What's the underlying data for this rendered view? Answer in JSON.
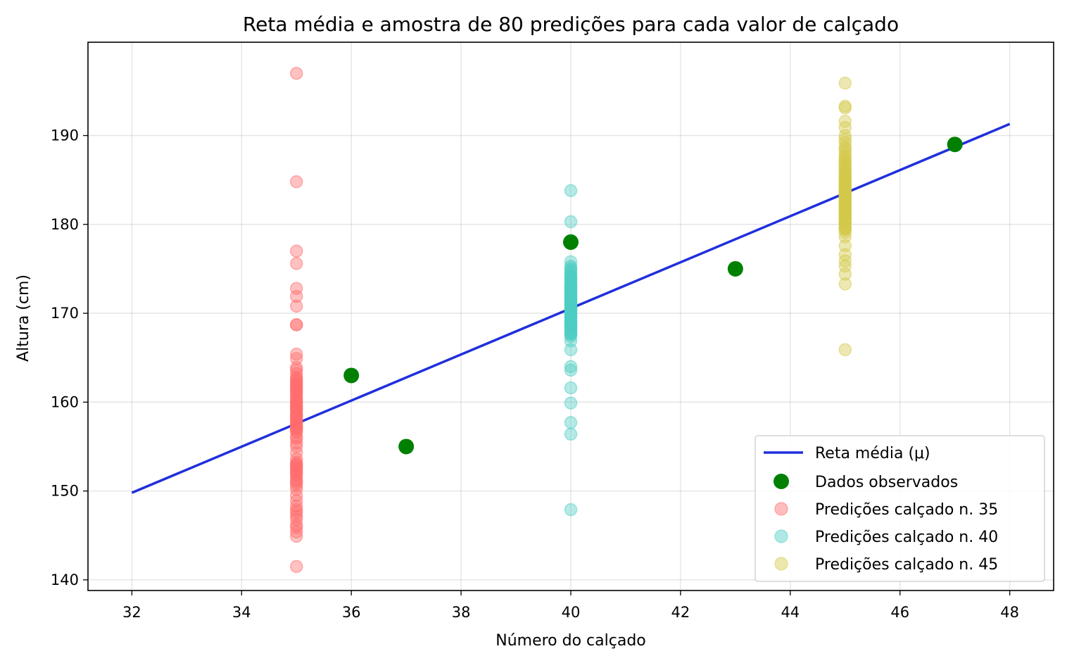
{
  "chart_data": {
    "type": "scatter",
    "title": "Reta média e amostra de 80 predições para cada valor de calçado",
    "xlabel": "Número do calçado",
    "ylabel": "Altura (cm)",
    "xlim": [
      31.2,
      48.8
    ],
    "ylim": [
      138.8,
      200.5
    ],
    "xticks": [
      32,
      34,
      36,
      38,
      40,
      42,
      44,
      46,
      48
    ],
    "yticks": [
      140,
      150,
      160,
      170,
      180,
      190
    ],
    "grid": true,
    "legend_position": "bottom-right",
    "colors": {
      "line": "#1f2fdc",
      "observed": "#008000",
      "pred35": "#ff6b6b",
      "pred40": "#4ecdc4",
      "pred45": "#d4c94a"
    },
    "mean_line": {
      "name": "Reta média (μ)",
      "x": [
        32,
        48
      ],
      "y": [
        149.8,
        191.3
      ]
    },
    "observed": {
      "name": "Dados observados",
      "x": [
        36,
        37,
        40,
        43,
        47
      ],
      "y": [
        163.0,
        155.0,
        178.0,
        175.0,
        189.0
      ]
    },
    "series": [
      {
        "name": "Predições calçado n. 35",
        "x": 35,
        "values": [
          197.0,
          184.8,
          177.0,
          175.6,
          172.8,
          171.9,
          170.8,
          168.7,
          168.7,
          165.4,
          164.9,
          163.6,
          163.2,
          162.8,
          162.4,
          162.0,
          161.6,
          161.2,
          160.8,
          160.5,
          160.1,
          159.7,
          159.3,
          158.9,
          158.5,
          158.2,
          157.8,
          157.4,
          157.0,
          156.6,
          155.9,
          155.4,
          154.3,
          153.2,
          152.9,
          152.5,
          152.1,
          151.7,
          151.3,
          150.9,
          149.5,
          148.3,
          147.6,
          147.2,
          146.8,
          145.9,
          145.4,
          144.9,
          141.5,
          153.6,
          161.8,
          159.6,
          158.0,
          150.6,
          146.2,
          163.9,
          157.1,
          152.3,
          160.3,
          155.0,
          148.9,
          161.0,
          159.1,
          158.6,
          157.6,
          156.1,
          151.9,
          153.0,
          162.6,
          161.4,
          160.0,
          158.4,
          157.2,
          152.7,
          147.9,
          162.2,
          159.4,
          156.8,
          151.1,
          150.2
        ]
      },
      {
        "name": "Predições calçado n. 40",
        "x": 40,
        "values": [
          183.8,
          180.3,
          178.2,
          175.8,
          175.3,
          174.9,
          174.5,
          174.1,
          173.7,
          173.3,
          172.9,
          172.5,
          172.1,
          171.7,
          171.4,
          171.0,
          170.6,
          170.2,
          169.8,
          169.4,
          169.0,
          168.6,
          168.2,
          167.8,
          167.4,
          166.9,
          165.9,
          164.0,
          163.6,
          161.6,
          159.9,
          157.7,
          156.4,
          147.9,
          172.0,
          171.2,
          170.4,
          169.6,
          168.8,
          168.0,
          173.5,
          174.7,
          175.1,
          170.8,
          169.2,
          171.6,
          172.3,
          173.1,
          167.6,
          168.4,
          170.0,
          171.8,
          172.7,
          174.3,
          173.9,
          169.9,
          170.5,
          171.1,
          168.9,
          167.9,
          172.8,
          173.4,
          170.3,
          169.5,
          171.3,
          171.9,
          172.4,
          168.5,
          169.1,
          170.7,
          174.0,
          173.0,
          171.5,
          170.1,
          168.7,
          172.6,
          171.0,
          169.7,
          168.3,
          167.7
        ]
      },
      {
        "name": "Predições calçado n. 45",
        "x": 45,
        "values": [
          195.9,
          193.3,
          193.1,
          191.6,
          190.9,
          190.0,
          189.6,
          189.2,
          188.7,
          188.2,
          187.8,
          187.3,
          186.5,
          186.1,
          185.6,
          185.2,
          184.8,
          184.4,
          183.9,
          183.5,
          183.1,
          182.7,
          182.3,
          181.9,
          181.5,
          181.1,
          180.7,
          180.3,
          179.9,
          179.5,
          179.1,
          178.6,
          177.6,
          176.6,
          175.9,
          175.3,
          174.4,
          173.3,
          165.9,
          184.1,
          182.9,
          181.7,
          180.5,
          186.8,
          185.9,
          183.3,
          182.1,
          180.9,
          179.7,
          184.6,
          185.4,
          183.7,
          182.5,
          181.3,
          180.1,
          186.3,
          187.1,
          184.2,
          183.0,
          181.8,
          180.6,
          179.4,
          185.0,
          183.6,
          182.4,
          181.2,
          186.9,
          185.7,
          184.5,
          183.2,
          182.0,
          180.8,
          179.6,
          188.5,
          187.6,
          184.9,
          183.8,
          182.6,
          181.4,
          180.2
        ]
      }
    ]
  }
}
